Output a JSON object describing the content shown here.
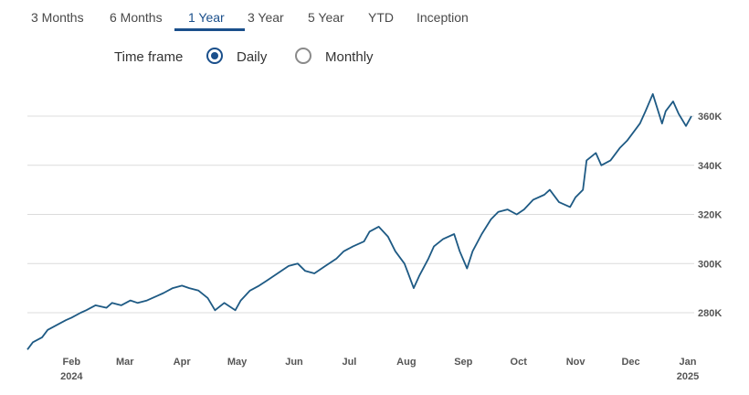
{
  "tabs": [
    {
      "label": "3 Months",
      "active": false
    },
    {
      "label": "6 Months",
      "active": false
    },
    {
      "label": "1 Year",
      "active": true
    },
    {
      "label": "3 Year",
      "active": false
    },
    {
      "label": "5 Year",
      "active": false
    },
    {
      "label": "YTD",
      "active": false
    },
    {
      "label": "Inception",
      "active": false
    }
  ],
  "timeframe": {
    "label": "Time frame",
    "options": [
      {
        "label": "Daily",
        "selected": true
      },
      {
        "label": "Monthly",
        "selected": false
      }
    ]
  },
  "colors": {
    "accent": "#1a4f8b",
    "line": "#1e5a84"
  },
  "chart_data": {
    "type": "line",
    "x_tick_labels": [
      "Feb",
      "Mar",
      "Apr",
      "May",
      "Jun",
      "Jul",
      "Aug",
      "Sep",
      "Oct",
      "Nov",
      "Dec",
      "Jan"
    ],
    "year_labels": [
      {
        "month": "Feb",
        "year": "2024"
      },
      {
        "month": "Jan",
        "year": "2025"
      }
    ],
    "y_tick_labels": [
      "280K",
      "300K",
      "320K",
      "340K",
      "360K"
    ],
    "y_tick_values": [
      280000,
      300000,
      320000,
      340000,
      360000
    ],
    "ylim": [
      265000,
      372000
    ],
    "grid": true,
    "series": [
      {
        "x": [
          "2024-01-08",
          "2024-01-11",
          "2024-01-16",
          "2024-01-19",
          "2024-01-24",
          "2024-01-29",
          "2024-02-01",
          "2024-02-06",
          "2024-02-09",
          "2024-02-14",
          "2024-02-20",
          "2024-02-23",
          "2024-02-28",
          "2024-03-04",
          "2024-03-08",
          "2024-03-13",
          "2024-03-19",
          "2024-03-22",
          "2024-03-27",
          "2024-04-01",
          "2024-04-05",
          "2024-04-10",
          "2024-04-15",
          "2024-04-19",
          "2024-04-24",
          "2024-04-30",
          "2024-05-03",
          "2024-05-08",
          "2024-05-13",
          "2024-05-17",
          "2024-05-23",
          "2024-05-29",
          "2024-06-03",
          "2024-06-07",
          "2024-06-12",
          "2024-06-18",
          "2024-06-24",
          "2024-06-28",
          "2024-07-03",
          "2024-07-09",
          "2024-07-12",
          "2024-07-17",
          "2024-07-22",
          "2024-07-26",
          "2024-07-31",
          "2024-08-02",
          "2024-08-05",
          "2024-08-08",
          "2024-08-13",
          "2024-08-16",
          "2024-08-21",
          "2024-08-27",
          "2024-08-30",
          "2024-09-03",
          "2024-09-06",
          "2024-09-11",
          "2024-09-16",
          "2024-09-20",
          "2024-09-25",
          "2024-09-30",
          "2024-10-04",
          "2024-10-09",
          "2024-10-15",
          "2024-10-18",
          "2024-10-23",
          "2024-10-29",
          "2024-11-01",
          "2024-11-05",
          "2024-11-07",
          "2024-11-12",
          "2024-11-15",
          "2024-11-20",
          "2024-11-25",
          "2024-11-29",
          "2024-12-04",
          "2024-12-06",
          "2024-12-09",
          "2024-12-13",
          "2024-12-18",
          "2024-12-20",
          "2024-12-24",
          "2024-12-27",
          "2024-12-31",
          "2025-01-03"
        ],
        "values": [
          265000,
          268000,
          270000,
          273000,
          275000,
          277000,
          278000,
          280000,
          281000,
          283000,
          282000,
          284000,
          283000,
          285000,
          284000,
          285000,
          287000,
          288000,
          290000,
          291000,
          290000,
          289000,
          286000,
          281000,
          284000,
          281000,
          285000,
          289000,
          291000,
          293000,
          296000,
          299000,
          300000,
          297000,
          296000,
          299000,
          302000,
          305000,
          307000,
          309000,
          313000,
          315000,
          311000,
          305000,
          300000,
          296000,
          290000,
          295000,
          302000,
          307000,
          310000,
          312000,
          305000,
          298000,
          305000,
          312000,
          318000,
          321000,
          322000,
          320000,
          322000,
          326000,
          328000,
          330000,
          325000,
          323000,
          327000,
          330000,
          342000,
          345000,
          340000,
          342000,
          347000,
          350000,
          355000,
          357000,
          362000,
          369000,
          357000,
          362000,
          366000,
          361000,
          356000,
          360000
        ]
      }
    ]
  }
}
